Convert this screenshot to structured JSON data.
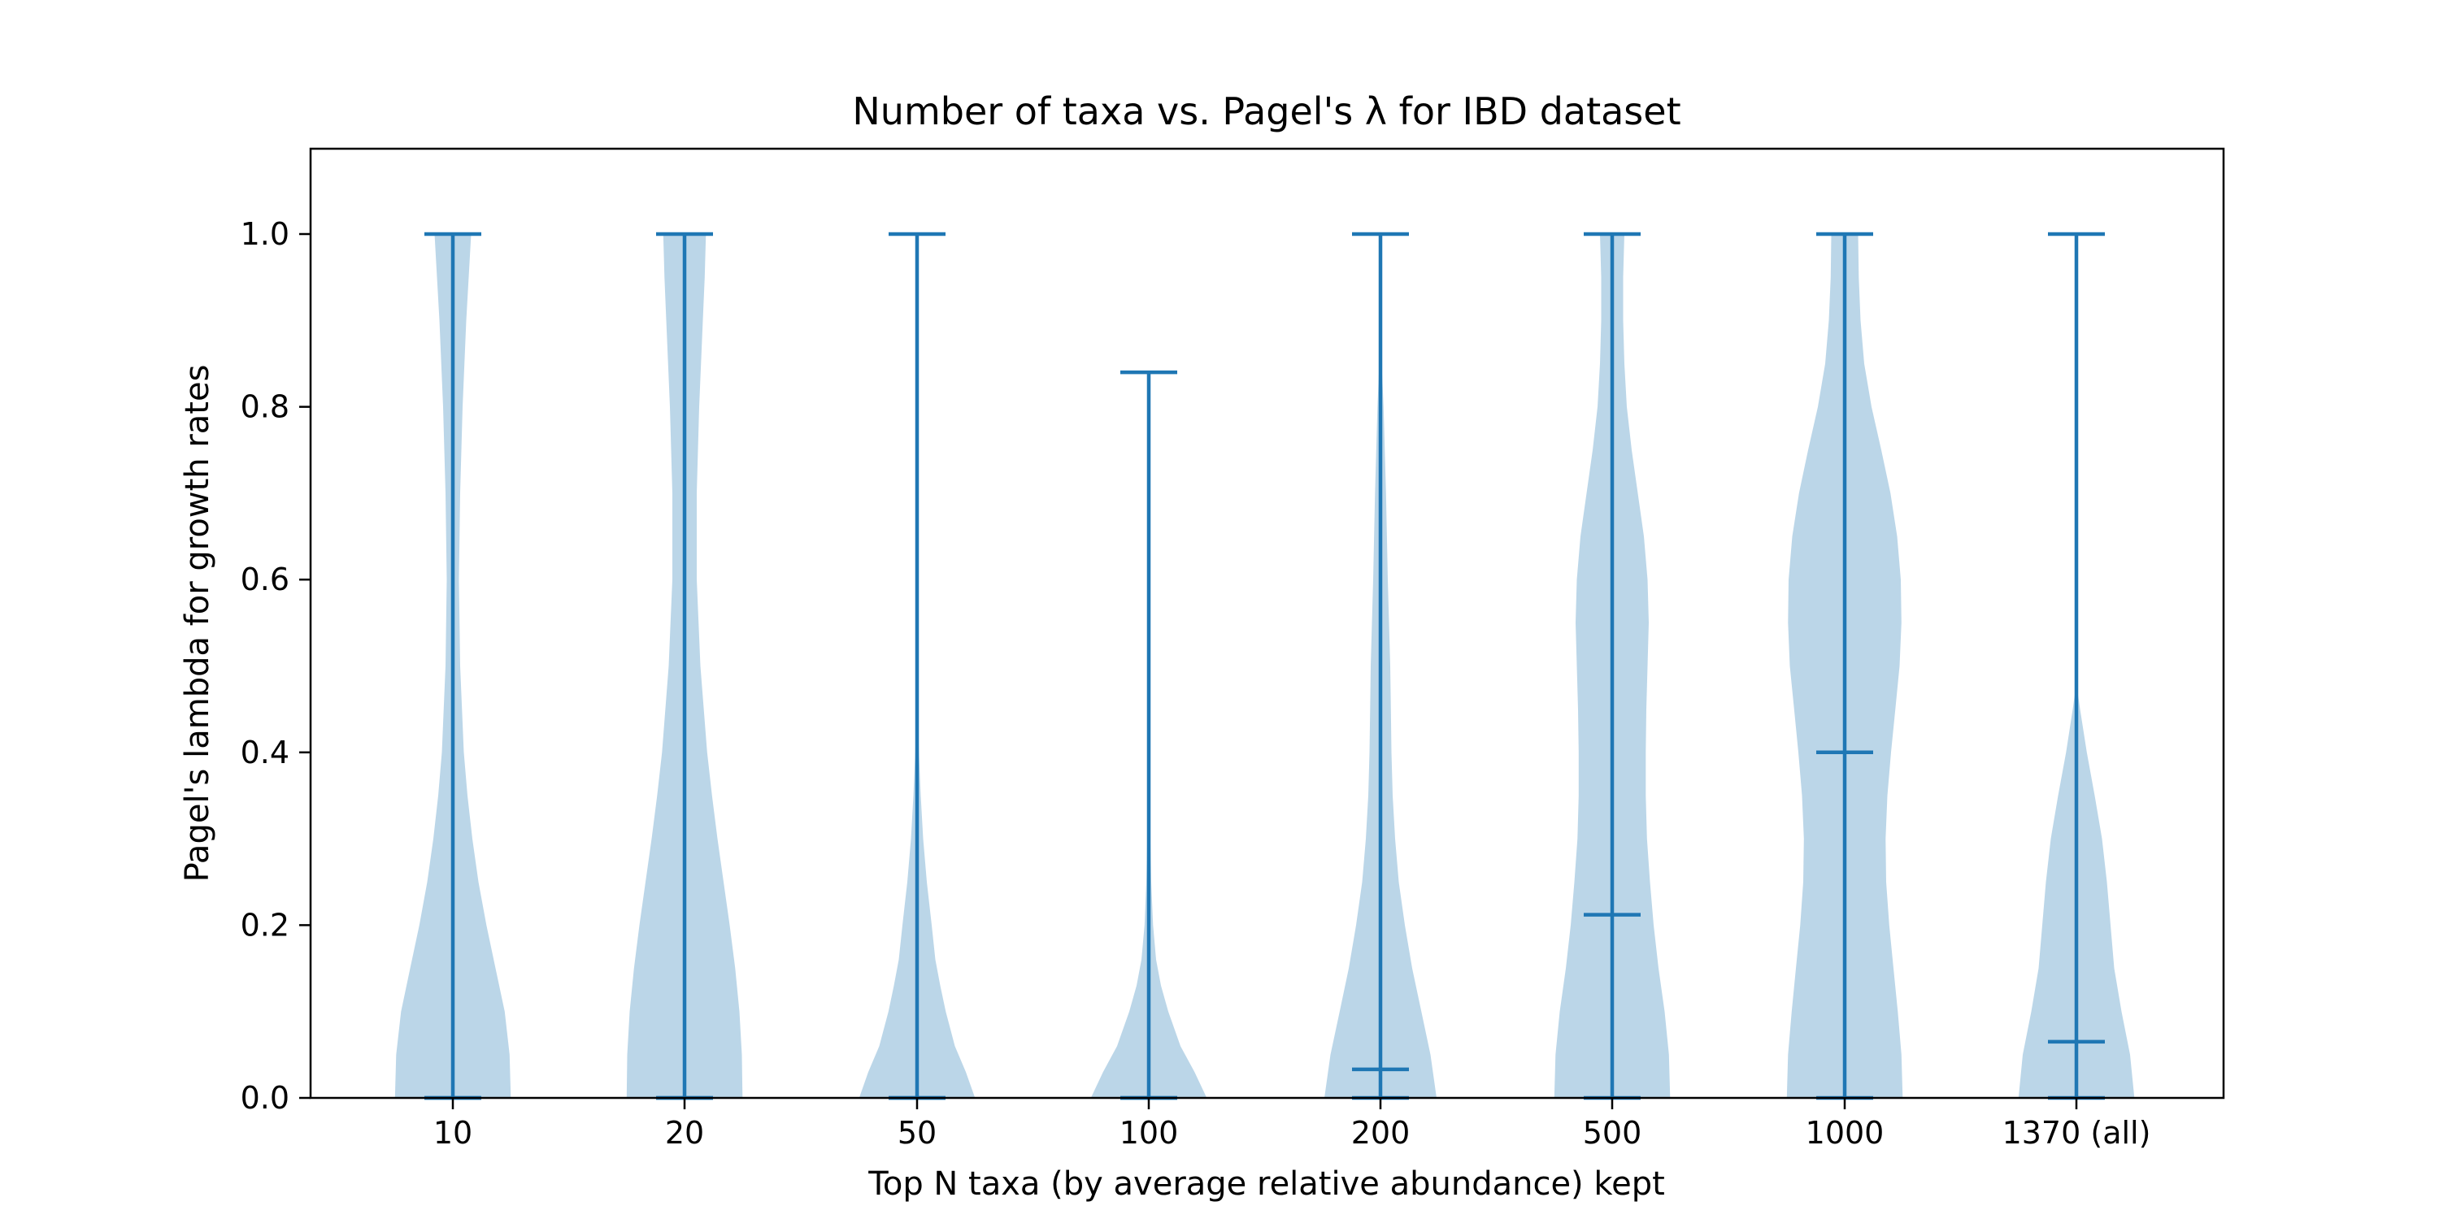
{
  "chart_data": {
    "type": "violin",
    "title": "Number of taxa vs. Pagel's λ for IBD dataset",
    "xlabel": "Top N taxa (by average relative abundance) kept",
    "ylabel": "Pagel's lambda for growth rates",
    "ylim": [
      -0.0,
      1.1
    ],
    "yticks": [
      "0.0",
      "0.2",
      "0.4",
      "0.6",
      "0.8",
      "1.0"
    ],
    "categories": [
      "10",
      "20",
      "50",
      "100",
      "200",
      "500",
      "1000",
      "1370 (all)"
    ],
    "series": [
      {
        "min": 0.0,
        "max": 1.0,
        "median": 0.0,
        "density": [
          [
            0.0,
            0.95
          ],
          [
            0.05,
            0.93
          ],
          [
            0.1,
            0.85
          ],
          [
            0.15,
            0.7
          ],
          [
            0.2,
            0.55
          ],
          [
            0.25,
            0.42
          ],
          [
            0.3,
            0.32
          ],
          [
            0.35,
            0.24
          ],
          [
            0.4,
            0.18
          ],
          [
            0.5,
            0.12
          ],
          [
            0.6,
            0.1
          ],
          [
            0.7,
            0.12
          ],
          [
            0.8,
            0.16
          ],
          [
            0.9,
            0.22
          ],
          [
            0.95,
            0.26
          ],
          [
            1.0,
            0.3
          ]
        ]
      },
      {
        "min": 0.0,
        "max": 1.0,
        "median": 0.0,
        "density": [
          [
            0.0,
            0.95
          ],
          [
            0.05,
            0.94
          ],
          [
            0.1,
            0.9
          ],
          [
            0.15,
            0.83
          ],
          [
            0.2,
            0.74
          ],
          [
            0.25,
            0.64
          ],
          [
            0.3,
            0.54
          ],
          [
            0.35,
            0.45
          ],
          [
            0.4,
            0.37
          ],
          [
            0.5,
            0.26
          ],
          [
            0.6,
            0.2
          ],
          [
            0.7,
            0.2
          ],
          [
            0.8,
            0.24
          ],
          [
            0.9,
            0.3
          ],
          [
            0.95,
            0.33
          ],
          [
            1.0,
            0.35
          ]
        ]
      },
      {
        "min": 0.0,
        "max": 1.0,
        "median": 0.0,
        "density": [
          [
            0.0,
            0.95
          ],
          [
            0.03,
            0.8
          ],
          [
            0.06,
            0.62
          ],
          [
            0.1,
            0.47
          ],
          [
            0.13,
            0.38
          ],
          [
            0.16,
            0.3
          ],
          [
            0.2,
            0.24
          ],
          [
            0.25,
            0.16
          ],
          [
            0.3,
            0.1
          ],
          [
            0.35,
            0.06
          ],
          [
            0.4,
            0.03
          ],
          [
            0.45,
            0.015
          ],
          [
            0.5,
            0.0
          ]
        ]
      },
      {
        "min": 0.0,
        "max": 0.84,
        "median": 0.0,
        "density": [
          [
            0.0,
            0.95
          ],
          [
            0.03,
            0.75
          ],
          [
            0.06,
            0.52
          ],
          [
            0.1,
            0.32
          ],
          [
            0.13,
            0.2
          ],
          [
            0.16,
            0.12
          ],
          [
            0.2,
            0.07
          ],
          [
            0.25,
            0.04
          ],
          [
            0.3,
            0.025
          ],
          [
            0.4,
            0.015
          ],
          [
            0.45,
            0.0
          ]
        ]
      },
      {
        "min": 0.0,
        "max": 1.0,
        "median": 0.033,
        "density": [
          [
            0.0,
            0.92
          ],
          [
            0.05,
            0.82
          ],
          [
            0.1,
            0.67
          ],
          [
            0.15,
            0.52
          ],
          [
            0.2,
            0.4
          ],
          [
            0.25,
            0.3
          ],
          [
            0.3,
            0.24
          ],
          [
            0.35,
            0.2
          ],
          [
            0.4,
            0.18
          ],
          [
            0.45,
            0.17
          ],
          [
            0.5,
            0.16
          ],
          [
            0.55,
            0.14
          ],
          [
            0.6,
            0.12
          ],
          [
            0.7,
            0.09
          ],
          [
            0.8,
            0.05
          ],
          [
            0.85,
            0.02
          ],
          [
            0.88,
            0.0
          ]
        ]
      },
      {
        "min": 0.0,
        "max": 1.0,
        "median": 0.212,
        "density": [
          [
            0.0,
            0.95
          ],
          [
            0.05,
            0.93
          ],
          [
            0.1,
            0.86
          ],
          [
            0.15,
            0.76
          ],
          [
            0.2,
            0.68
          ],
          [
            0.25,
            0.62
          ],
          [
            0.3,
            0.57
          ],
          [
            0.35,
            0.55
          ],
          [
            0.4,
            0.55
          ],
          [
            0.45,
            0.56
          ],
          [
            0.5,
            0.58
          ],
          [
            0.55,
            0.6
          ],
          [
            0.6,
            0.58
          ],
          [
            0.65,
            0.52
          ],
          [
            0.7,
            0.42
          ],
          [
            0.75,
            0.32
          ],
          [
            0.8,
            0.24
          ],
          [
            0.85,
            0.2
          ],
          [
            0.9,
            0.18
          ],
          [
            0.95,
            0.18
          ],
          [
            1.0,
            0.2
          ]
        ]
      },
      {
        "min": 0.0,
        "max": 1.0,
        "median": 0.4,
        "density": [
          [
            0.0,
            0.95
          ],
          [
            0.05,
            0.93
          ],
          [
            0.1,
            0.87
          ],
          [
            0.15,
            0.8
          ],
          [
            0.2,
            0.73
          ],
          [
            0.25,
            0.68
          ],
          [
            0.3,
            0.67
          ],
          [
            0.35,
            0.7
          ],
          [
            0.4,
            0.76
          ],
          [
            0.45,
            0.83
          ],
          [
            0.5,
            0.9
          ],
          [
            0.55,
            0.93
          ],
          [
            0.6,
            0.92
          ],
          [
            0.65,
            0.86
          ],
          [
            0.7,
            0.75
          ],
          [
            0.75,
            0.6
          ],
          [
            0.8,
            0.44
          ],
          [
            0.85,
            0.32
          ],
          [
            0.9,
            0.26
          ],
          [
            0.95,
            0.23
          ],
          [
            1.0,
            0.22
          ]
        ]
      },
      {
        "min": 0.0,
        "max": 1.0,
        "median": 0.065,
        "density": [
          [
            0.0,
            0.95
          ],
          [
            0.05,
            0.88
          ],
          [
            0.1,
            0.74
          ],
          [
            0.15,
            0.62
          ],
          [
            0.2,
            0.56
          ],
          [
            0.25,
            0.5
          ],
          [
            0.3,
            0.42
          ],
          [
            0.35,
            0.3
          ],
          [
            0.4,
            0.17
          ],
          [
            0.45,
            0.06
          ],
          [
            0.48,
            0.0
          ]
        ]
      }
    ]
  }
}
